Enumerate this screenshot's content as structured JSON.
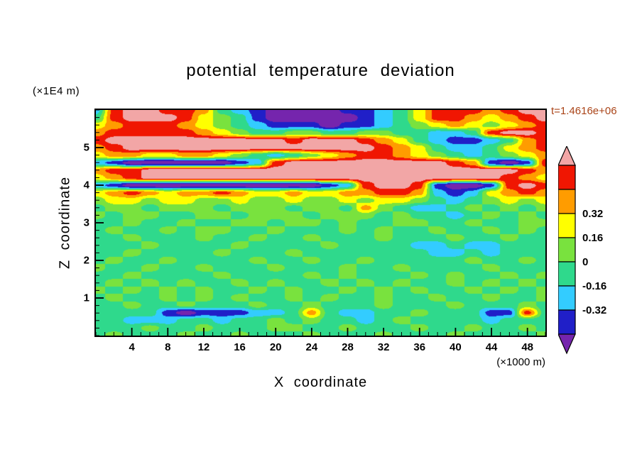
{
  "title": "potential temperature deviation",
  "annotations": {
    "time_label": "t=1.4616e+06",
    "time_color": "#aa4418",
    "y_axis_unit": "(×1E4 m)",
    "x_axis_unit": "(×1000 m)"
  },
  "axes": {
    "x": {
      "label": "X coordinate",
      "ticks": [
        4,
        8,
        12,
        16,
        20,
        24,
        28,
        32,
        36,
        40,
        44,
        48
      ],
      "minor_step": 1
    },
    "z": {
      "label": "Z coordinate",
      "ticks": [
        1,
        2,
        3,
        4,
        5
      ],
      "minor_step": 0.2
    }
  },
  "colorbar": {
    "labels": [
      "0.32",
      "0.16",
      "0",
      "-0.16",
      "-0.32"
    ],
    "label_boundaries": [
      2,
      3,
      4,
      5,
      6
    ],
    "bands_top_to_bottom": [
      "#f01602",
      "#ff9c00",
      "#ffff00",
      "#79e23e",
      "#2fd98c",
      "#33ccff",
      "#201fc8"
    ],
    "arrow_top_color": "#f2a6a6",
    "arrow_bottom_color": "#7525ad"
  },
  "chart_data": {
    "type": "heatmap",
    "title": "potential temperature deviation",
    "xlabel": "X coordinate",
    "ylabel": "Z coordinate",
    "x_unit": "×1000 m",
    "z_unit": "×1E4 m",
    "time_annotation": "t=1.4616e+06",
    "x_range": [
      0,
      50
    ],
    "z_range": [
      0,
      6
    ],
    "levels": [
      -0.48,
      -0.32,
      -0.16,
      0,
      0.16,
      0.32,
      0.48,
      0.64
    ],
    "level_colors": [
      "#7525ad",
      "#201fc8",
      "#33ccff",
      "#2fd98c",
      "#79e23e",
      "#ffff00",
      "#ff9c00",
      "#f01602",
      "#f2a6a6"
    ],
    "grid": {
      "nx": 26,
      "nz": 31,
      "x_step": 2,
      "z_top": 6,
      "z_bottom": 0,
      "values": [
        [
          -0.24,
          0.56,
          0.72,
          0.72,
          0.56,
          0.56,
          0.4,
          -0.08,
          -0.24,
          -0.4,
          -0.6,
          -0.6,
          -0.6,
          -0.6,
          -0.4,
          -0.4,
          -0.24,
          -0.08,
          0.24,
          0.56,
          0.56,
          0.56,
          0.4,
          0.56,
          0.72,
          0.72
        ],
        [
          -0.08,
          0.56,
          0.72,
          0.72,
          0.72,
          0.56,
          0.24,
          0.08,
          -0.08,
          -0.4,
          -0.6,
          -0.6,
          -0.6,
          -0.6,
          -0.6,
          -0.4,
          -0.24,
          -0.08,
          0.24,
          0.56,
          0.56,
          0.4,
          0.24,
          0.4,
          0.56,
          0.72
        ],
        [
          0.24,
          0.4,
          0.56,
          0.56,
          0.56,
          0.4,
          0.24,
          0.08,
          -0.08,
          -0.24,
          -0.4,
          -0.4,
          -0.4,
          -0.6,
          -0.4,
          -0.4,
          -0.24,
          -0.08,
          0.08,
          0.24,
          0.4,
          0.24,
          0.08,
          0.24,
          0.4,
          0.56
        ],
        [
          0.4,
          0.56,
          0.56,
          0.56,
          0.56,
          0.56,
          0.4,
          0.24,
          0.08,
          -0.08,
          -0.08,
          0.08,
          0.08,
          -0.08,
          -0.08,
          0.08,
          0.08,
          -0.08,
          -0.08,
          -0.24,
          -0.24,
          -0.08,
          0.56,
          0.72,
          0.72,
          0.56
        ],
        [
          0.56,
          0.72,
          0.72,
          0.72,
          0.72,
          0.72,
          0.72,
          0.72,
          0.72,
          0.72,
          0.72,
          0.56,
          0.72,
          0.72,
          0.72,
          0.56,
          0.4,
          0.24,
          -0.08,
          -0.24,
          -0.4,
          -0.4,
          -0.24,
          -0.08,
          0.4,
          0.56
        ],
        [
          0.4,
          0.56,
          0.72,
          0.72,
          0.72,
          0.72,
          0.72,
          0.72,
          0.72,
          0.72,
          0.72,
          0.72,
          0.72,
          0.72,
          0.72,
          0.72,
          0.56,
          0.4,
          0.24,
          -0.08,
          -0.24,
          -0.24,
          -0.08,
          0.24,
          0.4,
          0.56
        ],
        [
          0.24,
          0.4,
          0.4,
          0.24,
          0.24,
          0.4,
          0.4,
          0.24,
          0.08,
          -0.08,
          -0.24,
          -0.08,
          0.08,
          0.24,
          0.4,
          0.56,
          0.56,
          0.4,
          0.24,
          0.08,
          -0.08,
          -0.24,
          -0.08,
          0.08,
          0.24,
          0.4
        ],
        [
          -0.24,
          -0.4,
          -0.6,
          -0.6,
          -0.6,
          -0.6,
          -0.6,
          -0.6,
          -0.4,
          -0.24,
          0.56,
          0.72,
          0.72,
          0.72,
          0.72,
          0.72,
          0.72,
          0.72,
          0.72,
          0.72,
          0.56,
          0.4,
          -0.4,
          -0.6,
          -0.4,
          0.56
        ],
        [
          0.4,
          0.56,
          0.56,
          0.72,
          0.72,
          0.72,
          0.72,
          0.72,
          0.72,
          0.72,
          0.72,
          0.72,
          0.72,
          0.72,
          0.72,
          0.72,
          0.72,
          0.72,
          0.72,
          0.72,
          0.72,
          0.72,
          0.72,
          0.72,
          0.56,
          0.4
        ],
        [
          0.24,
          0.4,
          0.56,
          0.72,
          0.72,
          0.72,
          0.72,
          0.72,
          0.72,
          0.72,
          0.72,
          0.72,
          0.72,
          0.72,
          0.72,
          0.72,
          0.72,
          0.72,
          0.72,
          0.72,
          0.72,
          0.72,
          0.72,
          0.56,
          0.4,
          0.24
        ],
        [
          -0.24,
          -0.4,
          -0.6,
          -0.6,
          -0.6,
          -0.6,
          -0.6,
          -0.6,
          -0.6,
          -0.6,
          -0.6,
          -0.6,
          -0.6,
          -0.4,
          -0.24,
          0.56,
          0.72,
          0.72,
          0.56,
          -0.4,
          -0.6,
          -0.6,
          -0.4,
          0.56,
          0.72,
          0.56
        ],
        [
          0.24,
          0.4,
          0.56,
          0.4,
          0.24,
          0.4,
          0.4,
          0.56,
          0.4,
          0.24,
          0.24,
          0.4,
          0.24,
          0.24,
          0.4,
          0.4,
          0.56,
          0.56,
          0.4,
          -0.24,
          -0.4,
          -0.24,
          0.24,
          0.4,
          0.56,
          0.4
        ],
        [
          0.08,
          0.24,
          0.24,
          0.08,
          0.24,
          0.24,
          0.08,
          0.08,
          0.24,
          0.08,
          0.08,
          0.24,
          0.08,
          0.08,
          0.24,
          0.08,
          0.24,
          0.24,
          0.08,
          -0.08,
          -0.24,
          -0.08,
          0.08,
          0.24,
          0.08,
          0.24
        ],
        [
          -0.08,
          0.08,
          0.08,
          -0.08,
          0.08,
          0.08,
          0.08,
          -0.08,
          0.08,
          0.08,
          0.08,
          -0.08,
          0.08,
          0.08,
          -0.08,
          0.4,
          0.08,
          -0.08,
          -0.24,
          -0.24,
          -0.08,
          0.08,
          -0.08,
          0.08,
          -0.08,
          0.08
        ],
        [
          0.08,
          -0.08,
          0.08,
          0.08,
          -0.08,
          -0.08,
          0.08,
          0.08,
          -0.08,
          0.08,
          0.08,
          0.08,
          -0.08,
          0.08,
          0.08,
          0.08,
          -0.08,
          0.08,
          -0.08,
          -0.08,
          -0.24,
          -0.08,
          0.08,
          -0.08,
          0.08,
          -0.08
        ],
        [
          -0.08,
          -0.08,
          0.08,
          -0.08,
          -0.08,
          0.08,
          -0.08,
          -0.08,
          0.08,
          0.08,
          -0.08,
          0.08,
          0.08,
          -0.08,
          0.08,
          -0.08,
          -0.08,
          0.08,
          0.08,
          -0.08,
          -0.08,
          0.08,
          -0.08,
          -0.08,
          0.08,
          0.08
        ],
        [
          -0.08,
          0.08,
          -0.08,
          -0.08,
          0.08,
          -0.08,
          0.08,
          0.08,
          -0.08,
          -0.08,
          0.08,
          -0.08,
          -0.08,
          -0.08,
          0.08,
          -0.08,
          0.08,
          -0.08,
          -0.08,
          0.08,
          -0.08,
          -0.08,
          0.08,
          -0.08,
          0.08,
          -0.08
        ],
        [
          -0.08,
          -0.08,
          0.08,
          -0.08,
          -0.08,
          -0.08,
          0.08,
          -0.08,
          -0.08,
          0.08,
          -0.08,
          -0.08,
          0.08,
          -0.08,
          -0.08,
          -0.08,
          0.08,
          -0.08,
          -0.08,
          -0.08,
          0.08,
          -0.08,
          -0.08,
          0.08,
          -0.08,
          -0.08
        ],
        [
          -0.08,
          -0.08,
          -0.08,
          0.08,
          -0.08,
          -0.08,
          -0.08,
          -0.08,
          0.08,
          -0.08,
          -0.08,
          -0.08,
          -0.08,
          0.08,
          -0.08,
          -0.08,
          -0.08,
          -0.08,
          -0.24,
          -0.24,
          -0.08,
          -0.24,
          -0.24,
          -0.08,
          -0.08,
          -0.08
        ],
        [
          -0.08,
          -0.08,
          0.08,
          -0.08,
          -0.08,
          -0.08,
          -0.08,
          0.08,
          -0.08,
          -0.08,
          -0.08,
          0.08,
          -0.08,
          -0.08,
          -0.08,
          -0.08,
          -0.08,
          -0.08,
          -0.08,
          -0.24,
          -0.24,
          -0.08,
          -0.24,
          -0.08,
          -0.08,
          -0.08
        ],
        [
          -0.08,
          0.08,
          -0.08,
          -0.08,
          0.08,
          -0.08,
          -0.08,
          -0.08,
          -0.08,
          0.08,
          -0.08,
          -0.08,
          0.08,
          -0.08,
          -0.08,
          0.08,
          -0.08,
          -0.08,
          -0.08,
          -0.08,
          -0.08,
          0.08,
          -0.08,
          -0.08,
          0.08,
          -0.08
        ],
        [
          0.08,
          -0.08,
          -0.08,
          0.08,
          -0.08,
          -0.08,
          0.08,
          -0.08,
          -0.08,
          -0.08,
          0.08,
          -0.08,
          -0.08,
          -0.08,
          0.08,
          -0.08,
          -0.08,
          0.08,
          -0.08,
          -0.08,
          -0.08,
          -0.08,
          0.08,
          -0.08,
          -0.08,
          -0.08
        ],
        [
          -0.08,
          -0.08,
          0.08,
          -0.08,
          -0.08,
          -0.08,
          -0.08,
          0.08,
          -0.08,
          -0.08,
          -0.08,
          -0.08,
          0.08,
          -0.08,
          0.08,
          -0.08,
          -0.08,
          -0.08,
          0.08,
          -0.08,
          0.08,
          -0.08,
          -0.08,
          0.08,
          -0.08,
          0.08
        ],
        [
          -0.08,
          0.08,
          -0.08,
          0.08,
          -0.08,
          0.08,
          -0.08,
          -0.08,
          0.08,
          -0.08,
          0.08,
          -0.08,
          -0.08,
          0.08,
          -0.08,
          0.08,
          -0.08,
          0.08,
          -0.08,
          -0.08,
          0.08,
          -0.08,
          0.08,
          -0.08,
          0.08,
          -0.08
        ],
        [
          0.08,
          -0.08,
          0.08,
          -0.08,
          0.08,
          -0.08,
          0.08,
          -0.08,
          -0.08,
          0.08,
          -0.08,
          0.08,
          -0.08,
          -0.08,
          0.08,
          -0.08,
          0.08,
          -0.08,
          0.08,
          -0.08,
          -0.08,
          0.08,
          -0.08,
          0.08,
          -0.08,
          0.08
        ],
        [
          -0.08,
          0.08,
          -0.08,
          -0.08,
          0.08,
          -0.08,
          0.08,
          -0.08,
          0.08,
          -0.08,
          -0.08,
          0.08,
          -0.08,
          0.08,
          -0.08,
          -0.08,
          0.08,
          -0.08,
          -0.08,
          0.08,
          -0.08,
          -0.08,
          0.08,
          -0.08,
          -0.08,
          0.08
        ],
        [
          -0.08,
          -0.08,
          0.08,
          -0.08,
          -0.08,
          0.08,
          -0.08,
          -0.08,
          -0.08,
          0.08,
          -0.08,
          -0.08,
          0.08,
          -0.08,
          -0.08,
          -0.08,
          0.08,
          -0.08,
          -0.08,
          -0.08,
          0.08,
          -0.08,
          -0.08,
          -0.08,
          0.08,
          -0.08
        ],
        [
          -0.08,
          -0.08,
          -0.08,
          -0.08,
          -0.4,
          -0.6,
          -0.4,
          -0.4,
          -0.4,
          -0.24,
          -0.24,
          -0.08,
          0.4,
          -0.08,
          -0.24,
          -0.24,
          -0.08,
          -0.08,
          0.08,
          -0.08,
          -0.08,
          -0.08,
          -0.4,
          -0.4,
          0.56,
          -0.08
        ],
        [
          -0.08,
          -0.08,
          -0.24,
          -0.24,
          -0.24,
          -0.08,
          -0.08,
          -0.24,
          -0.08,
          -0.08,
          0.08,
          -0.08,
          0.08,
          -0.08,
          -0.08,
          -0.24,
          -0.08,
          0.08,
          -0.08,
          -0.08,
          -0.08,
          -0.08,
          -0.24,
          -0.08,
          -0.08,
          -0.08
        ],
        [
          -0.08,
          -0.08,
          -0.08,
          0.08,
          -0.08,
          -0.08,
          0.08,
          -0.08,
          -0.08,
          -0.08,
          0.08,
          0.08,
          -0.08,
          -0.08,
          0.08,
          -0.08,
          -0.08,
          -0.08,
          0.08,
          -0.08,
          -0.08,
          0.08,
          -0.08,
          -0.08,
          0.08,
          -0.08
        ],
        [
          -0.08,
          0.08,
          -0.08,
          -0.08,
          -0.08,
          0.08,
          -0.08,
          -0.08,
          0.08,
          -0.08,
          -0.08,
          -0.08,
          0.08,
          -0.08,
          -0.08,
          -0.08,
          0.08,
          -0.08,
          -0.08,
          -0.08,
          0.08,
          -0.08,
          -0.08,
          -0.08,
          -0.08,
          0.08
        ]
      ]
    }
  }
}
